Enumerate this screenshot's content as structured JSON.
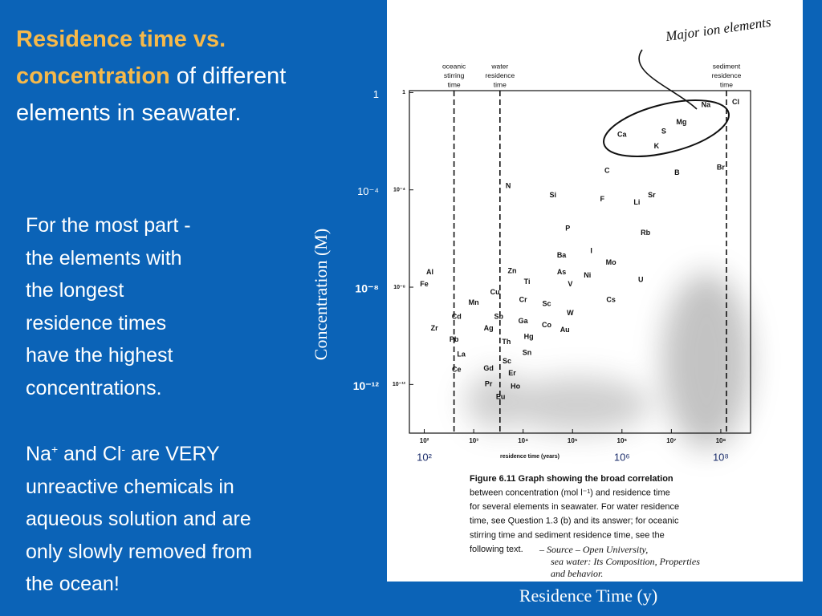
{
  "slide": {
    "title_highlight": "Residence time vs. concentration",
    "title_rest": " of different elements in seawater.",
    "paragraph_1": [
      "For the most part -",
      "the elements with",
      "the longest",
      "residence times",
      "have the highest",
      "concentrations."
    ],
    "paragraph_2": [
      [
        "Na",
        "+",
        " and Cl",
        "-",
        " are VERY"
      ],
      [
        "unreactive chemicals in"
      ],
      [
        "aqueous solution and are"
      ],
      [
        "only slowly removed from"
      ],
      [
        "the ocean!"
      ]
    ]
  },
  "chart_data": {
    "type": "scatter",
    "x_label": "Residence Time (y)",
    "y_label": "Concentration (M)",
    "x_log": true,
    "y_log": true,
    "xlim": [
      50,
      400000000
    ],
    "ylim": [
      1e-14,
      1.2
    ],
    "xticks": [
      {
        "value": 100,
        "label": "10²"
      },
      {
        "value": 1000,
        "label": "10³"
      },
      {
        "value": 10000,
        "label": "10⁴"
      },
      {
        "value": 100000,
        "label": "10⁵"
      },
      {
        "value": 1000000,
        "label": "10⁶"
      },
      {
        "value": 10000000,
        "label": "10⁷"
      },
      {
        "value": 100000000,
        "label": "10⁸"
      }
    ],
    "yticks": [
      1,
      {
        "value": 0.0001,
        "label": "10⁻⁴"
      },
      {
        "value": 1e-08,
        "label": "10⁻⁸"
      },
      {
        "value": 1e-12,
        "label": "10⁻¹²"
      }
    ],
    "overlay_xticks": [
      {
        "value": 100,
        "label": "10²"
      },
      {
        "value": 1000000,
        "label": "10⁶"
      },
      {
        "value": 100000000,
        "label": "10⁸"
      }
    ],
    "overlay_yticks": [
      1,
      {
        "value": 0.0001,
        "label": "10⁻⁴"
      },
      {
        "value": 1e-08,
        "label": "10⁻⁸"
      },
      {
        "value": 1e-12,
        "label": "10⁻¹²"
      }
    ],
    "axis_caption": "residence time (years)",
    "reference_lines": [
      {
        "label": [
          "oceanic",
          "stirring",
          "time"
        ],
        "value": 400
      },
      {
        "label": [
          "water",
          "residence",
          "time"
        ],
        "value": 3400
      },
      {
        "label": [
          "sediment",
          "residence",
          "time"
        ],
        "value": 130000000
      }
    ],
    "color": "#111111",
    "labels": [
      "Na",
      "Cl",
      "Mg",
      "Ca",
      "S",
      "K",
      "C",
      "B",
      "Br",
      "N",
      "Si",
      "F",
      "Li",
      "Sr",
      "P",
      "Rb",
      "Ba",
      "I",
      "Mo",
      "Al",
      "Zn",
      "As",
      "Ni",
      "U",
      "Fe",
      "Ti",
      "V",
      "Cu",
      "Mn",
      "Cr",
      "Sc",
      "Cs",
      "W",
      "Cd",
      "Sb",
      "Ga",
      "Co",
      "Zr",
      "Ag",
      "Au",
      "Hg",
      "Pb",
      "Th",
      "La",
      "Sn",
      "Sc",
      "Ce",
      "Gd",
      "Er",
      "Pr",
      "Ho",
      "Eu"
    ],
    "x": [
      50000000,
      200000000,
      16000000,
      1000000,
      7000000,
      5000000,
      500000,
      13000000,
      100000000,
      5000,
      40000,
      400000,
      2000000,
      4000000,
      80000,
      3000000,
      60000,
      240000,
      600000,
      130,
      6000,
      60000,
      200000,
      2400000,
      100,
      12000,
      90000,
      2700,
      1000,
      10000,
      30000,
      600000,
      90000,
      450,
      3200,
      10000,
      30000,
      160,
      2000,
      70000,
      13000,
      400,
      4600,
      560,
      12000,
      4700,
      450,
      2000,
      6000,
      2000,
      7000,
      3500
    ],
    "y": [
      0.3,
      0.4,
      0.06,
      0.018,
      0.025,
      0.006,
      0.0006,
      0.0005,
      0.0008,
      0.00014,
      6e-05,
      4e-05,
      3e-05,
      6e-05,
      2.5e-06,
      1.7e-06,
      2e-07,
      3e-07,
      1e-07,
      4e-08,
      4.5e-08,
      4e-08,
      3e-08,
      2e-08,
      1.3e-08,
      1.6e-08,
      1.3e-08,
      6e-09,
      2.3e-09,
      3e-09,
      2e-09,
      3e-09,
      8.5e-10,
      6e-10,
      6e-10,
      4e-10,
      2.7e-10,
      2e-10,
      2e-10,
      1.7e-10,
      9e-11,
      7e-11,
      5.5e-11,
      1.7e-11,
      2e-11,
      9e-12,
      4e-12,
      4.4e-12,
      2.8e-12,
      1e-12,
      8e-13,
      3e-13
    ],
    "annotation": "Major ion elements",
    "caption": [
      "Figure 6.11   Graph showing the broad correlation",
      "between concentration (mol l⁻¹) and residence time",
      "for several elements in seawater. For water residence",
      "time, see Question 1.3 (b) and its answer; for oceanic",
      "stirring time and sediment residence time, see the",
      "following text."
    ],
    "source_note": [
      "– Source – Open University,",
      "sea water: Its Composition, Properties",
      "and behavior."
    ]
  }
}
